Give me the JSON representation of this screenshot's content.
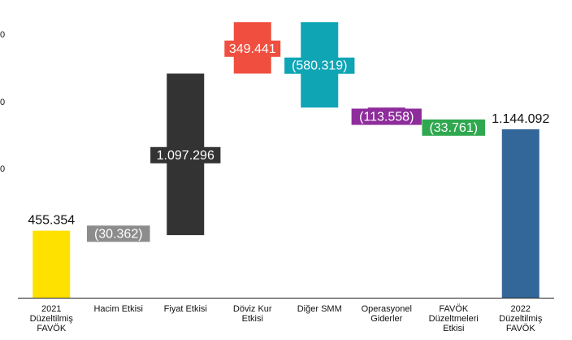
{
  "chart_data": {
    "type": "bar",
    "subtype": "waterfall",
    "categories": [
      "2021 Düzeltilmiş FAVÖK",
      "Hacim Etkisi",
      "Fiyat Etkisi",
      "Döviz Kur Etkisi",
      "Diğer SMM",
      "Operasyonel Giderler",
      "FAVÖK Düzeltmeleri Etkisi",
      "2022 Düzeltilmiş FAVÖK"
    ],
    "values": [
      455354,
      -30362,
      1097296,
      349441,
      -580319,
      -113558,
      -33761,
      1144092
    ],
    "value_labels": [
      "455.354",
      "(30.362)",
      "1.097.296",
      "349.441",
      "(580.319)",
      "(113.558)",
      "(33.761)",
      "1.144.092"
    ],
    "y_tick_labels": [
      "0",
      "0",
      "0"
    ],
    "colors": [
      "#FFE100",
      "#8C8C8C",
      "#333333",
      "#F04E3E",
      "#0FA5B5",
      "#8E2C9B",
      "#2FA84F",
      "#336699"
    ],
    "value_label_colors": [
      "#111111",
      "#ffffff",
      "#ffffff",
      "#ffffff",
      "#ffffff",
      "#ffffff",
      "#ffffff",
      "#111111"
    ],
    "title": "",
    "xlabel": "",
    "ylabel": "",
    "ylim": [
      0,
      1970000
    ],
    "grid": false,
    "legend": "none"
  }
}
